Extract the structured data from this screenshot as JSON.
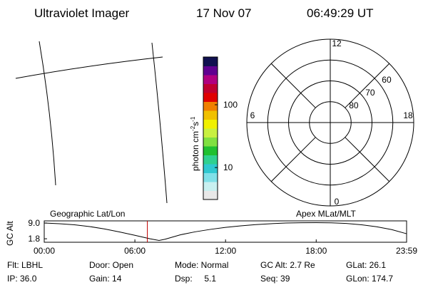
{
  "header": {
    "title": "Ultraviolet Imager",
    "date": "17 Nov 07",
    "time": "06:49:29 UT"
  },
  "colorbar": {
    "label": [
      "photon cm",
      "-2",
      "s",
      "-1"
    ],
    "scale": "log",
    "range": [
      3.1,
      575
    ],
    "ticks": [
      10,
      100
    ],
    "colors": [
      "#e8e8e8",
      "#c8f0f0",
      "#80e0e8",
      "#30c8d0",
      "#30d090",
      "#20c030",
      "#80e040",
      "#c8f040",
      "#f0f000",
      "#f0c000",
      "#f08000",
      "#e00000",
      "#c00030",
      "#b00080",
      "#600090",
      "#101050"
    ]
  },
  "polar": {
    "rings": [
      80,
      70,
      60
    ],
    "outer": 50,
    "hours": [
      12,
      6,
      0,
      18
    ]
  },
  "chart_data": {
    "type": "line",
    "ylabel": "GC Alt",
    "left_label": "Geographic Lat/Lon",
    "right_label": "Apex MLat/MLT",
    "x": [
      0,
      1,
      2,
      3,
      4,
      5,
      6,
      7,
      7.6,
      8,
      9,
      10,
      11,
      12,
      13,
      14,
      15,
      16,
      17,
      18,
      19,
      20,
      21,
      22,
      23,
      23.983
    ],
    "values": [
      9.0,
      8.7,
      8.2,
      7.4,
      6.3,
      4.9,
      3.4,
      1.8,
      1.0,
      1.6,
      3.6,
      5.0,
      6.1,
      7.0,
      7.7,
      8.3,
      8.7,
      9.0,
      9.15,
      9.2,
      9.1,
      8.8,
      8.2,
      7.3,
      6.0,
      4.1
    ],
    "color": "#000000",
    "xlim": [
      0,
      23.983
    ],
    "xticks": [
      {
        "value": 0,
        "label": "00:00"
      },
      {
        "value": 6,
        "label": "06:00"
      },
      {
        "value": 12,
        "label": "12:00"
      },
      {
        "value": 18,
        "label": "18:00"
      },
      {
        "value": 23.983,
        "label": "23:59"
      }
    ],
    "ylim": [
      0.2,
      10
    ],
    "yticks": [
      1.8,
      {
        "value": 9,
        "label": "9.0"
      }
    ],
    "marker": {
      "value": 6.825,
      "color": "#c00000"
    }
  },
  "status": [
    [
      "Flt: LBHL",
      "IP: 36.0"
    ],
    [
      "Door: Open",
      "Gain: 14"
    ],
    [
      "Mode: Normal",
      "Dsp:     5.1"
    ],
    [
      "GC Alt: 2.7 Re",
      "Seq: 39"
    ],
    [
      "GLat: 26.1",
      "GLon: 174.7"
    ]
  ]
}
